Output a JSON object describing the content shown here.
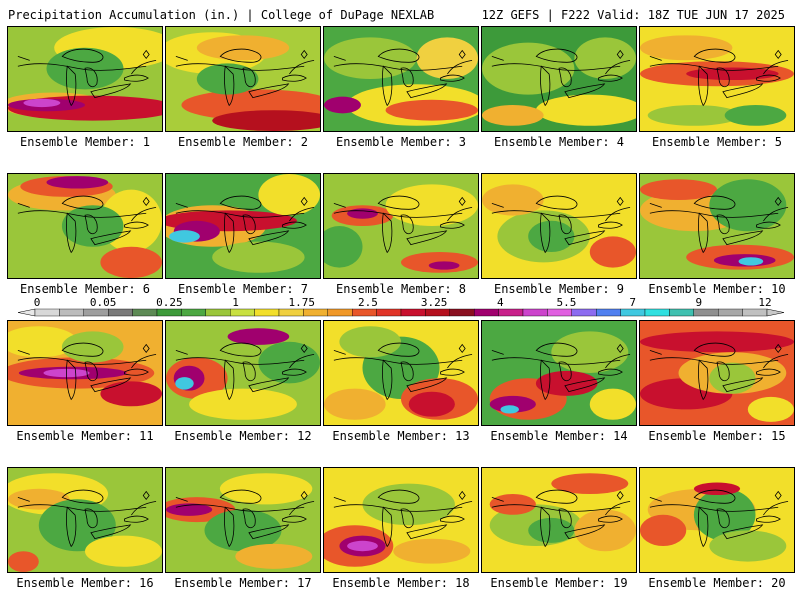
{
  "header": {
    "left_title": "Precipitation Accumulation (in.) | College of DuPage NEXLAB",
    "right_title": "12Z GEFS | F222 Valid: 18Z TUE JUN 17 2025"
  },
  "members": [
    {
      "label": "Ensemble Member: 1",
      "base": "#9ac63a",
      "blobs": [
        [
          "#f2df2a",
          0.7,
          0.2,
          0.4,
          0.2
        ],
        [
          "#f0b030",
          0.3,
          0.75,
          0.35,
          0.12
        ],
        [
          "#c8102e",
          0.55,
          0.78,
          0.55,
          0.12
        ],
        [
          "#a0006e",
          0.25,
          0.75,
          0.25,
          0.06
        ],
        [
          "#cc44cc",
          0.22,
          0.73,
          0.12,
          0.04
        ],
        [
          "#4ca842",
          0.5,
          0.4,
          0.25,
          0.2
        ]
      ]
    },
    {
      "label": "Ensemble Member: 2",
      "base": "#a9cd3a",
      "blobs": [
        [
          "#f2df2a",
          0.3,
          0.25,
          0.35,
          0.2
        ],
        [
          "#e8562a",
          0.6,
          0.75,
          0.5,
          0.15
        ],
        [
          "#b5101e",
          0.7,
          0.9,
          0.4,
          0.1
        ],
        [
          "#f0b030",
          0.5,
          0.2,
          0.3,
          0.12
        ],
        [
          "#4ca842",
          0.4,
          0.5,
          0.2,
          0.15
        ]
      ]
    },
    {
      "label": "Ensemble Member: 3",
      "base": "#4ca842",
      "blobs": [
        [
          "#f2df2a",
          0.6,
          0.75,
          0.45,
          0.2
        ],
        [
          "#e8562a",
          0.7,
          0.8,
          0.3,
          0.1
        ],
        [
          "#a0006e",
          0.12,
          0.75,
          0.12,
          0.08
        ],
        [
          "#9ac63a",
          0.3,
          0.3,
          0.3,
          0.2
        ],
        [
          "#f0d040",
          0.8,
          0.3,
          0.2,
          0.2
        ]
      ]
    },
    {
      "label": "Ensemble Member: 4",
      "base": "#3d9a3a",
      "blobs": [
        [
          "#9ac63a",
          0.3,
          0.4,
          0.3,
          0.25
        ],
        [
          "#f2df2a",
          0.7,
          0.8,
          0.35,
          0.15
        ],
        [
          "#f0b030",
          0.2,
          0.85,
          0.2,
          0.1
        ],
        [
          "#9ac63a",
          0.8,
          0.3,
          0.2,
          0.2
        ]
      ]
    },
    {
      "label": "Ensemble Member: 5",
      "base": "#f2df2a",
      "blobs": [
        [
          "#e8562a",
          0.5,
          0.45,
          0.5,
          0.12
        ],
        [
          "#c8102e",
          0.6,
          0.45,
          0.3,
          0.06
        ],
        [
          "#9ac63a",
          0.35,
          0.85,
          0.3,
          0.1
        ],
        [
          "#f0b030",
          0.3,
          0.2,
          0.3,
          0.12
        ],
        [
          "#4ca842",
          0.75,
          0.85,
          0.2,
          0.1
        ]
      ]
    },
    {
      "label": "Ensemble Member: 6",
      "base": "#9ac63a",
      "blobs": [
        [
          "#f0b030",
          0.35,
          0.2,
          0.35,
          0.15
        ],
        [
          "#e8562a",
          0.38,
          0.12,
          0.3,
          0.1
        ],
        [
          "#a0006e",
          0.45,
          0.08,
          0.2,
          0.06
        ],
        [
          "#f2df2a",
          0.8,
          0.45,
          0.2,
          0.3
        ],
        [
          "#e8562a",
          0.8,
          0.85,
          0.2,
          0.15
        ],
        [
          "#4ca842",
          0.55,
          0.5,
          0.2,
          0.2
        ]
      ]
    },
    {
      "label": "Ensemble Member: 7",
      "base": "#4ca842",
      "blobs": [
        [
          "#f0b030",
          0.3,
          0.5,
          0.35,
          0.2
        ],
        [
          "#c8102e",
          0.4,
          0.45,
          0.45,
          0.1
        ],
        [
          "#a0006e",
          0.2,
          0.55,
          0.15,
          0.1
        ],
        [
          "#40c8e0",
          0.12,
          0.6,
          0.1,
          0.06
        ],
        [
          "#f2df2a",
          0.8,
          0.2,
          0.2,
          0.2
        ],
        [
          "#9ac63a",
          0.6,
          0.8,
          0.3,
          0.15
        ]
      ]
    },
    {
      "label": "Ensemble Member: 8",
      "base": "#9ac63a",
      "blobs": [
        [
          "#e8562a",
          0.25,
          0.4,
          0.2,
          0.1
        ],
        [
          "#a0006e",
          0.25,
          0.38,
          0.1,
          0.05
        ],
        [
          "#f2df2a",
          0.7,
          0.3,
          0.3,
          0.2
        ],
        [
          "#e8562a",
          0.75,
          0.85,
          0.25,
          0.1
        ],
        [
          "#a0006e",
          0.78,
          0.88,
          0.1,
          0.04
        ],
        [
          "#4ca842",
          0.1,
          0.7,
          0.15,
          0.2
        ]
      ]
    },
    {
      "label": "Ensemble Member: 9",
      "base": "#f2df2a",
      "blobs": [
        [
          "#9ac63a",
          0.4,
          0.6,
          0.3,
          0.25
        ],
        [
          "#4ca842",
          0.45,
          0.6,
          0.15,
          0.15
        ],
        [
          "#f0b030",
          0.2,
          0.25,
          0.2,
          0.15
        ],
        [
          "#e8562a",
          0.85,
          0.75,
          0.15,
          0.15
        ]
      ]
    },
    {
      "label": "Ensemble Member: 10",
      "base": "#9ac63a",
      "blobs": [
        [
          "#f0b030",
          0.35,
          0.35,
          0.35,
          0.2
        ],
        [
          "#e8562a",
          0.25,
          0.15,
          0.25,
          0.1
        ],
        [
          "#4ca842",
          0.7,
          0.3,
          0.25,
          0.25
        ],
        [
          "#e8562a",
          0.65,
          0.8,
          0.35,
          0.12
        ],
        [
          "#a0006e",
          0.68,
          0.83,
          0.2,
          0.06
        ],
        [
          "#40c8e0",
          0.72,
          0.84,
          0.08,
          0.04
        ]
      ]
    },
    {
      "label": "Ensemble Member: 11",
      "base": "#f0b030",
      "blobs": [
        [
          "#e8562a",
          0.45,
          0.5,
          0.5,
          0.15
        ],
        [
          "#a0006e",
          0.42,
          0.5,
          0.35,
          0.06
        ],
        [
          "#cc44cc",
          0.38,
          0.5,
          0.15,
          0.04
        ],
        [
          "#f2df2a",
          0.2,
          0.2,
          0.25,
          0.15
        ],
        [
          "#9ac63a",
          0.55,
          0.25,
          0.2,
          0.15
        ],
        [
          "#c8102e",
          0.8,
          0.7,
          0.2,
          0.12
        ]
      ]
    },
    {
      "label": "Ensemble Member: 12",
      "base": "#9ac63a",
      "blobs": [
        [
          "#e8562a",
          0.2,
          0.55,
          0.2,
          0.2
        ],
        [
          "#a0006e",
          0.15,
          0.55,
          0.1,
          0.12
        ],
        [
          "#40c8e0",
          0.12,
          0.6,
          0.06,
          0.06
        ],
        [
          "#a0006e",
          0.6,
          0.15,
          0.2,
          0.08
        ],
        [
          "#f2df2a",
          0.5,
          0.8,
          0.35,
          0.15
        ],
        [
          "#4ca842",
          0.8,
          0.4,
          0.2,
          0.2
        ]
      ]
    },
    {
      "label": "Ensemble Member: 13",
      "base": "#f2df2a",
      "blobs": [
        [
          "#4ca842",
          0.5,
          0.45,
          0.25,
          0.3
        ],
        [
          "#e8562a",
          0.75,
          0.75,
          0.25,
          0.2
        ],
        [
          "#c8102e",
          0.7,
          0.8,
          0.15,
          0.12
        ],
        [
          "#f0b030",
          0.2,
          0.8,
          0.2,
          0.15
        ],
        [
          "#9ac63a",
          0.3,
          0.2,
          0.2,
          0.15
        ]
      ]
    },
    {
      "label": "Ensemble Member: 14",
      "base": "#4ca842",
      "blobs": [
        [
          "#e8562a",
          0.3,
          0.75,
          0.25,
          0.2
        ],
        [
          "#a0006e",
          0.2,
          0.8,
          0.15,
          0.08
        ],
        [
          "#40c8e0",
          0.18,
          0.85,
          0.06,
          0.04
        ],
        [
          "#c8102e",
          0.55,
          0.6,
          0.2,
          0.12
        ],
        [
          "#9ac63a",
          0.7,
          0.3,
          0.25,
          0.2
        ],
        [
          "#f2df2a",
          0.85,
          0.8,
          0.15,
          0.15
        ]
      ]
    },
    {
      "label": "Ensemble Member: 15",
      "base": "#e8562a",
      "blobs": [
        [
          "#c8102e",
          0.5,
          0.2,
          0.5,
          0.1
        ],
        [
          "#c8102e",
          0.3,
          0.7,
          0.3,
          0.15
        ],
        [
          "#f0b030",
          0.6,
          0.5,
          0.35,
          0.2
        ],
        [
          "#9ac63a",
          0.6,
          0.55,
          0.15,
          0.15
        ],
        [
          "#f2df2a",
          0.85,
          0.85,
          0.15,
          0.12
        ]
      ]
    },
    {
      "label": "Ensemble Member: 16",
      "base": "#9ac63a",
      "blobs": [
        [
          "#f2df2a",
          0.3,
          0.25,
          0.35,
          0.2
        ],
        [
          "#f0b030",
          0.2,
          0.3,
          0.2,
          0.1
        ],
        [
          "#4ca842",
          0.45,
          0.55,
          0.25,
          0.25
        ],
        [
          "#e8562a",
          0.1,
          0.9,
          0.1,
          0.1
        ],
        [
          "#f2df2a",
          0.75,
          0.8,
          0.25,
          0.15
        ]
      ]
    },
    {
      "label": "Ensemble Member: 17",
      "base": "#9ac63a",
      "blobs": [
        [
          "#e8562a",
          0.2,
          0.4,
          0.25,
          0.12
        ],
        [
          "#a0006e",
          0.15,
          0.4,
          0.15,
          0.06
        ],
        [
          "#f2df2a",
          0.65,
          0.2,
          0.3,
          0.15
        ],
        [
          "#4ca842",
          0.5,
          0.6,
          0.25,
          0.2
        ],
        [
          "#f0b030",
          0.7,
          0.85,
          0.25,
          0.12
        ]
      ]
    },
    {
      "label": "Ensemble Member: 18",
      "base": "#f2df2a",
      "blobs": [
        [
          "#e8562a",
          0.2,
          0.75,
          0.25,
          0.2
        ],
        [
          "#a0006e",
          0.25,
          0.75,
          0.15,
          0.1
        ],
        [
          "#cc44cc",
          0.25,
          0.75,
          0.1,
          0.05
        ],
        [
          "#9ac63a",
          0.55,
          0.35,
          0.3,
          0.2
        ],
        [
          "#f0b030",
          0.7,
          0.8,
          0.25,
          0.12
        ]
      ]
    },
    {
      "label": "Ensemble Member: 19",
      "base": "#f2df2a",
      "blobs": [
        [
          "#9ac63a",
          0.35,
          0.55,
          0.3,
          0.2
        ],
        [
          "#4ca842",
          0.45,
          0.6,
          0.15,
          0.12
        ],
        [
          "#e8562a",
          0.7,
          0.15,
          0.25,
          0.1
        ],
        [
          "#f0b030",
          0.8,
          0.6,
          0.2,
          0.2
        ],
        [
          "#e8562a",
          0.2,
          0.35,
          0.15,
          0.1
        ]
      ]
    },
    {
      "label": "Ensemble Member: 20",
      "base": "#f2df2a",
      "blobs": [
        [
          "#f0b030",
          0.4,
          0.4,
          0.35,
          0.2
        ],
        [
          "#e8562a",
          0.15,
          0.6,
          0.15,
          0.15
        ],
        [
          "#4ca842",
          0.55,
          0.45,
          0.2,
          0.25
        ],
        [
          "#9ac63a",
          0.7,
          0.75,
          0.25,
          0.15
        ],
        [
          "#c8102e",
          0.5,
          0.2,
          0.15,
          0.06
        ]
      ]
    }
  ],
  "colorbar": {
    "labels": [
      "0",
      "0.05",
      "0.25",
      "1",
      "1.75",
      "2.5",
      "3.25",
      "4",
      "5.5",
      "7",
      "9",
      "12"
    ],
    "colors": [
      "#d8d8d8",
      "#bcbcbc",
      "#9e9e9e",
      "#7a7a7a",
      "#5d8a55",
      "#3d9a3a",
      "#4ca842",
      "#9ac63a",
      "#c8e040",
      "#f2df2a",
      "#f0d040",
      "#f0b030",
      "#f09828",
      "#e8562a",
      "#e03428",
      "#c8102e",
      "#b5101e",
      "#8a1020",
      "#a0006e",
      "#c8208a",
      "#cc44cc",
      "#e060e0",
      "#8c6cf0",
      "#5080f0",
      "#40c8e0",
      "#30e0e0",
      "#40c0b0",
      "#909090",
      "#a8a8a8",
      "#c0c0c0"
    ]
  }
}
